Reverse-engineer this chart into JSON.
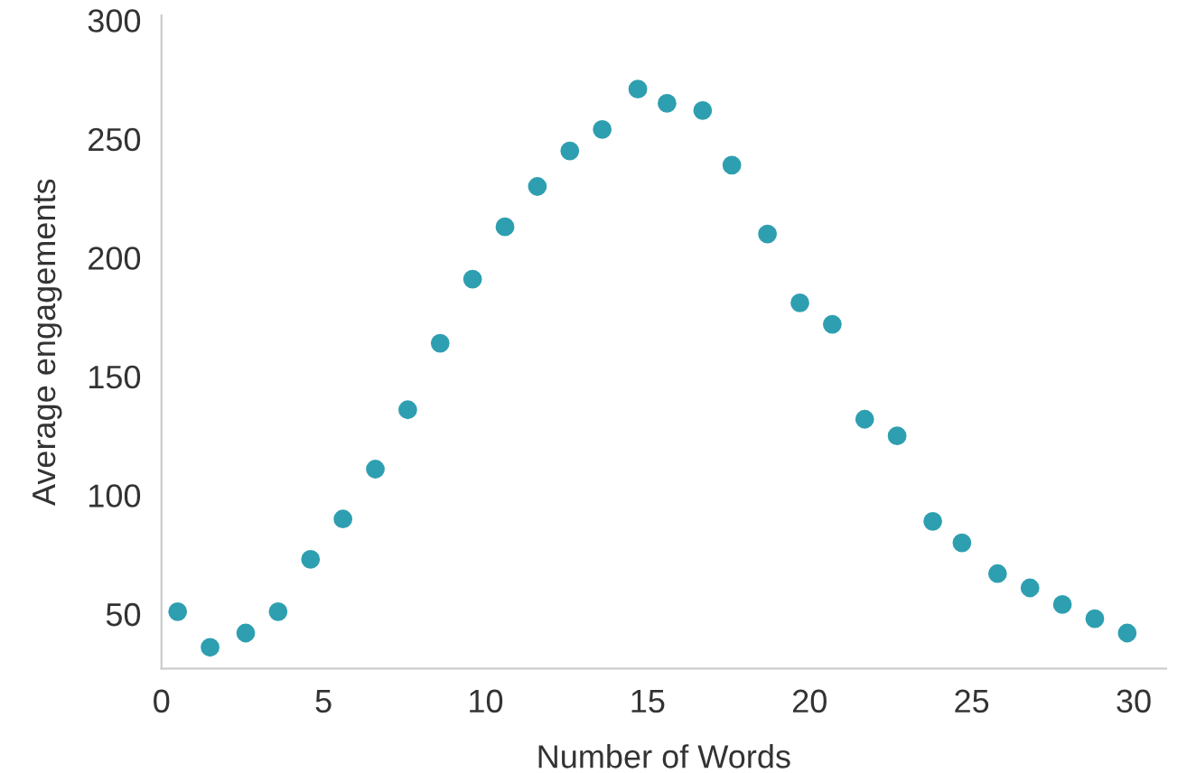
{
  "chart_data": {
    "type": "scatter",
    "xlabel": "Number of Words",
    "ylabel": "Average engagements",
    "x": [
      0.5,
      1.5,
      2.6,
      3.6,
      4.6,
      5.6,
      6.6,
      7.6,
      8.6,
      9.6,
      10.6,
      11.6,
      12.6,
      13.6,
      14.7,
      15.6,
      16.7,
      17.6,
      18.7,
      19.7,
      20.7,
      21.7,
      22.7,
      23.8,
      24.7,
      25.8,
      26.8,
      27.8,
      28.8,
      29.8
    ],
    "series": [
      {
        "color": "#2e9fb0",
        "values": [
          51,
          36,
          42,
          51,
          73,
          90,
          111,
          136,
          164,
          191,
          213,
          230,
          245,
          254,
          271,
          265,
          262,
          239,
          210,
          181,
          172,
          132,
          125,
          89,
          80,
          67,
          61,
          54,
          48,
          42
        ]
      }
    ],
    "xlim": [
      0,
      31
    ],
    "ylim": [
      27,
      302
    ],
    "xticks": [
      0,
      5,
      10,
      15,
      20,
      25,
      30
    ],
    "yticks": [
      50,
      100,
      150,
      200,
      250,
      300
    ],
    "grid": false,
    "legend": false,
    "marker": "circle"
  }
}
